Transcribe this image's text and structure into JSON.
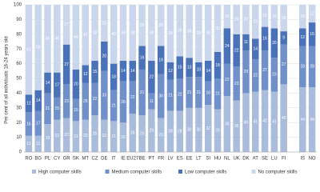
{
  "chart_data": {
    "type": "stacked-bar",
    "y_label": "Per cent of all individuals 16-24 years old",
    "categories": [
      "RO",
      "BG",
      "PL",
      "CY",
      "GR",
      "SK",
      "MT",
      "CZ",
      "DE",
      "IT",
      "IE",
      "EU27",
      "BE",
      "PT",
      "FR",
      "LV",
      "ES",
      "EE",
      "LT",
      "SI",
      "HU",
      "NL",
      "UK",
      "DK",
      "AT",
      "SE",
      "LU",
      "FI",
      null,
      "IS",
      "NO"
    ],
    "series": [
      {
        "name": "High computer skills",
        "color": "#a9bcdc",
        "values": [
          11,
          11,
          19,
          22,
          23,
          21,
          22,
          25,
          22,
          21,
          20,
          26,
          25,
          29,
          23,
          28,
          28,
          30,
          30,
          32,
          29,
          38,
          35,
          40,
          41,
          42,
          41,
          46,
          null,
          44,
          44
        ]
      },
      {
        "name": "Medium computer skills",
        "color": "#6f90c8",
        "values": [
          16,
          17,
          21,
          15,
          23,
          15,
          25,
          22,
          33,
          21,
          28,
          22,
          31,
          11,
          30,
          21,
          22,
          21,
          21,
          16,
          21,
          22,
          23,
          29,
          22,
          27,
          23,
          27,
          null,
          28,
          28
        ]
      },
      {
        "name": "Low computer skills",
        "color": "#4a72b8",
        "values": [
          12,
          14,
          14,
          17,
          27,
          20,
          12,
          15,
          20,
          18,
          14,
          14,
          16,
          22,
          19,
          12,
          15,
          13,
          10,
          14,
          18,
          24,
          22,
          11,
          14,
          16,
          20,
          9,
          null,
          12,
          16
        ]
      },
      {
        "name": "No computer skills",
        "color": "#c9d6ec",
        "values": [
          61,
          58,
          46,
          46,
          27,
          44,
          41,
          38,
          25,
          40,
          38,
          38,
          28,
          38,
          28,
          39,
          35,
          36,
          39,
          38,
          32,
          16,
          20,
          20,
          23,
          15,
          16,
          18,
          null,
          16,
          12
        ]
      }
    ],
    "ylim": [
      0,
      100
    ],
    "yticks": [
      0,
      10,
      20,
      30,
      40,
      50,
      60,
      70,
      80,
      90,
      100
    ],
    "grid": true
  }
}
